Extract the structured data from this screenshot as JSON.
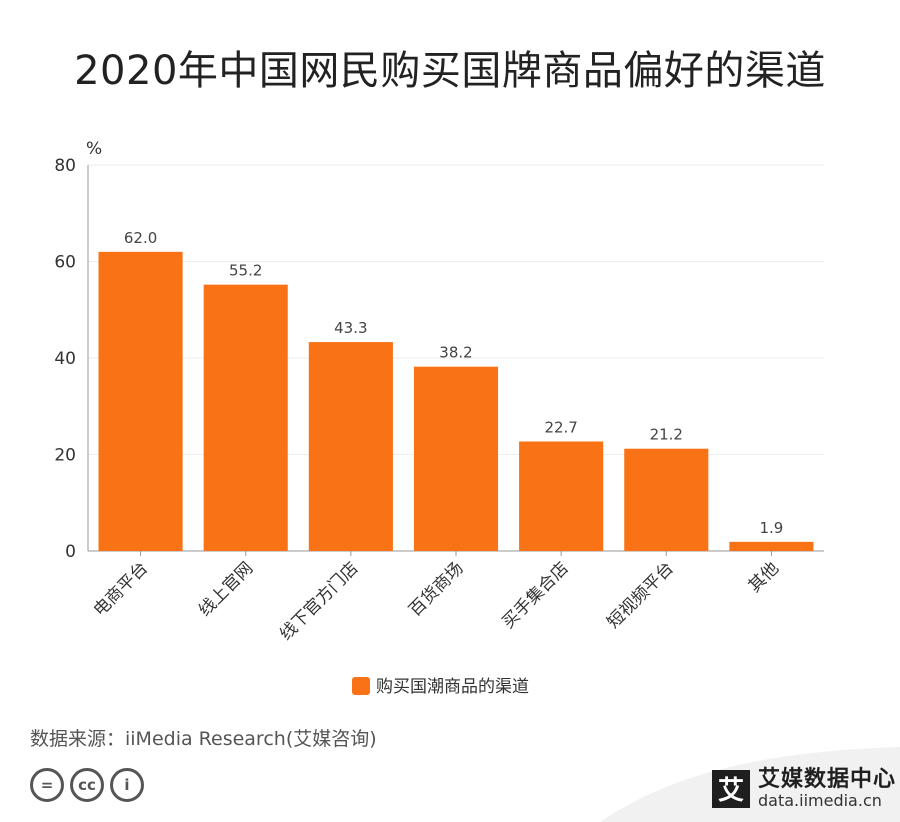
{
  "title": "2020年中国网民购买国牌商品偏好的渠道",
  "source": "数据来源：iiMedia Research(艾媒咨询)",
  "license_icons": [
    "=",
    "cc",
    "i"
  ],
  "brand": {
    "name": "艾媒数据中心",
    "url": "data.iimedia.cn",
    "logo_char": "艾"
  },
  "colors": {
    "bar": "#f97316",
    "grid": "#eeeeee",
    "axis": "#999999"
  },
  "chart_data": {
    "type": "bar",
    "categories": [
      "电商平台",
      "线上官网",
      "线下官方门店",
      "百货商场",
      "买手集合店",
      "短视频平台",
      "其他"
    ],
    "series": [
      {
        "name": "购买国潮商品的渠道",
        "values": [
          62.0,
          55.2,
          43.3,
          38.2,
          22.7,
          21.2,
          1.9
        ]
      }
    ],
    "ylabel": "%",
    "ylim": [
      0,
      80
    ],
    "yticks": [
      0,
      20,
      40,
      60,
      80
    ],
    "grid": true,
    "legend": "bottom"
  }
}
